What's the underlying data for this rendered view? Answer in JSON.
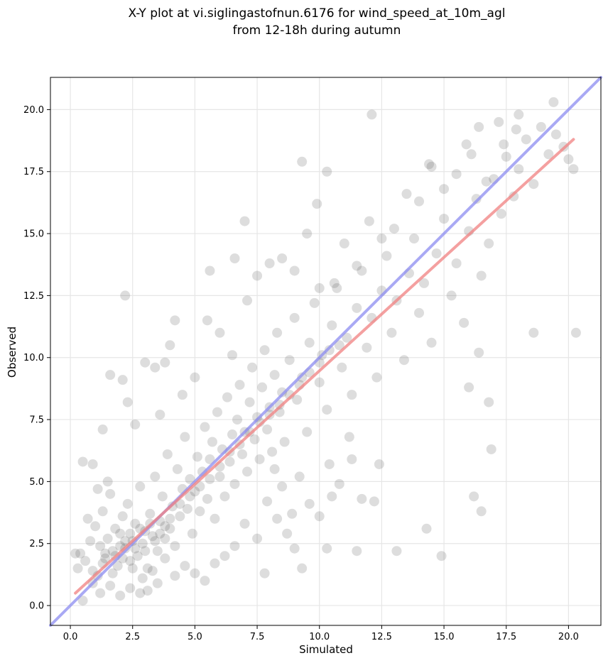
{
  "chart_data": {
    "type": "scatter",
    "title_lines": [
      "X-Y plot at vi.siglingastofnun.6176 for wind_speed_at_10m_agl",
      "from 12-18h during autumn"
    ],
    "xlabel": "Simulated",
    "ylabel": "Observed",
    "xlim": [
      -0.8,
      21.3
    ],
    "ylim": [
      -0.8,
      21.3
    ],
    "x_ticks": [
      0.0,
      2.5,
      5.0,
      7.5,
      10.0,
      12.5,
      15.0,
      17.5,
      20.0
    ],
    "x_tick_labels": [
      "0.0",
      "2.5",
      "5.0",
      "7.5",
      "10.0",
      "12.5",
      "15.0",
      "17.5",
      "20.0"
    ],
    "y_ticks": [
      0.0,
      2.5,
      5.0,
      7.5,
      10.0,
      12.5,
      15.0,
      17.5,
      20.0
    ],
    "y_tick_labels": [
      "0.0",
      "2.5",
      "5.0",
      "7.5",
      "10.0",
      "12.5",
      "15.0",
      "17.5",
      "20.0"
    ],
    "grid": true,
    "points": [
      [
        0.4,
        2.1
      ],
      [
        0.6,
        1.8
      ],
      [
        0.8,
        2.6
      ],
      [
        1.0,
        3.2
      ],
      [
        1.1,
        1.2
      ],
      [
        1.2,
        2.4
      ],
      [
        1.3,
        3.8
      ],
      [
        1.4,
        1.9
      ],
      [
        1.5,
        2.7
      ],
      [
        1.6,
        4.5
      ],
      [
        1.7,
        2.2
      ],
      [
        1.8,
        3.1
      ],
      [
        1.9,
        1.6
      ],
      [
        2.0,
        2.9
      ],
      [
        2.1,
        3.6
      ],
      [
        2.2,
        2.3
      ],
      [
        2.3,
        4.1
      ],
      [
        2.4,
        1.8
      ],
      [
        2.5,
        2.6
      ],
      [
        2.6,
        3.3
      ],
      [
        2.7,
        2.0
      ],
      [
        2.8,
        4.8
      ],
      [
        2.9,
        2.5
      ],
      [
        3.0,
        3.0
      ],
      [
        3.1,
        1.5
      ],
      [
        3.2,
        3.7
      ],
      [
        3.3,
        2.8
      ],
      [
        3.4,
        5.2
      ],
      [
        3.5,
        2.2
      ],
      [
        3.6,
        3.4
      ],
      [
        3.7,
        4.4
      ],
      [
        3.8,
        2.7
      ],
      [
        3.9,
        6.1
      ],
      [
        4.0,
        3.1
      ],
      [
        4.1,
        4.0
      ],
      [
        4.2,
        2.4
      ],
      [
        4.3,
        5.5
      ],
      [
        4.4,
        3.6
      ],
      [
        4.5,
        4.7
      ],
      [
        4.6,
        6.8
      ],
      [
        4.7,
        3.9
      ],
      [
        4.8,
        5.1
      ],
      [
        4.9,
        2.9
      ],
      [
        5.0,
        4.6
      ],
      [
        5.1,
        6.0
      ],
      [
        5.2,
        3.8
      ],
      [
        5.3,
        5.4
      ],
      [
        5.4,
        7.2
      ],
      [
        5.5,
        4.3
      ],
      [
        5.6,
        5.9
      ],
      [
        5.7,
        6.6
      ],
      [
        5.8,
        3.5
      ],
      [
        5.9,
        7.8
      ],
      [
        6.0,
        5.2
      ],
      [
        6.1,
        6.3
      ],
      [
        6.2,
        4.4
      ],
      [
        6.3,
        8.4
      ],
      [
        6.4,
        5.8
      ],
      [
        6.5,
        6.9
      ],
      [
        6.6,
        4.9
      ],
      [
        6.7,
        7.5
      ],
      [
        6.8,
        8.9
      ],
      [
        6.9,
        6.1
      ],
      [
        7.0,
        7.0
      ],
      [
        7.1,
        5.4
      ],
      [
        7.2,
        8.2
      ],
      [
        7.3,
        9.6
      ],
      [
        7.4,
        6.7
      ],
      [
        7.5,
        7.6
      ],
      [
        7.6,
        5.9
      ],
      [
        7.7,
        8.8
      ],
      [
        7.8,
        10.3
      ],
      [
        7.9,
        7.1
      ],
      [
        8.0,
        8.0
      ],
      [
        8.1,
        6.2
      ],
      [
        8.2,
        9.3
      ],
      [
        8.3,
        11.0
      ],
      [
        8.4,
        7.8
      ],
      [
        8.5,
        8.6
      ],
      [
        8.6,
        6.6
      ],
      [
        8.8,
        9.9
      ],
      [
        9.0,
        11.6
      ],
      [
        9.1,
        8.3
      ],
      [
        9.3,
        9.2
      ],
      [
        9.5,
        7.0
      ],
      [
        9.6,
        10.6
      ],
      [
        9.8,
        12.2
      ],
      [
        10.0,
        9.0
      ],
      [
        10.1,
        10.1
      ],
      [
        10.3,
        7.9
      ],
      [
        10.5,
        11.3
      ],
      [
        10.7,
        12.8
      ],
      [
        10.9,
        9.6
      ],
      [
        11.1,
        10.8
      ],
      [
        11.3,
        8.5
      ],
      [
        11.5,
        12.0
      ],
      [
        11.7,
        13.5
      ],
      [
        11.9,
        10.4
      ],
      [
        12.1,
        11.6
      ],
      [
        12.3,
        9.2
      ],
      [
        12.5,
        12.7
      ],
      [
        12.7,
        14.1
      ],
      [
        12.9,
        11.0
      ],
      [
        13.1,
        12.3
      ],
      [
        13.4,
        9.9
      ],
      [
        13.6,
        13.4
      ],
      [
        13.8,
        14.8
      ],
      [
        14.0,
        11.8
      ],
      [
        14.2,
        13.0
      ],
      [
        14.5,
        10.6
      ],
      [
        14.7,
        14.2
      ],
      [
        15.0,
        15.6
      ],
      [
        15.3,
        12.5
      ],
      [
        15.5,
        13.8
      ],
      [
        15.8,
        11.4
      ],
      [
        16.0,
        15.1
      ],
      [
        16.3,
        16.4
      ],
      [
        16.5,
        13.3
      ],
      [
        16.8,
        14.6
      ],
      [
        17.0,
        17.2
      ],
      [
        17.3,
        15.8
      ],
      [
        17.5,
        18.1
      ],
      [
        17.8,
        16.5
      ],
      [
        18.0,
        17.6
      ],
      [
        18.3,
        18.8
      ],
      [
        18.6,
        17.0
      ],
      [
        18.9,
        19.3
      ],
      [
        19.2,
        18.2
      ],
      [
        19.5,
        19.0
      ],
      [
        19.8,
        18.5
      ],
      [
        20.0,
        18.0
      ],
      [
        20.2,
        17.6
      ],
      [
        19.4,
        20.3
      ],
      [
        18.0,
        19.8
      ],
      [
        17.2,
        19.5
      ],
      [
        16.4,
        19.3
      ],
      [
        15.9,
        18.6
      ],
      [
        14.4,
        17.8
      ],
      [
        12.1,
        19.8
      ],
      [
        10.3,
        17.5
      ],
      [
        9.3,
        17.9
      ],
      [
        9.9,
        16.2
      ],
      [
        7.0,
        15.5
      ],
      [
        2.2,
        12.5
      ],
      [
        5.6,
        13.5
      ],
      [
        6.6,
        14.0
      ],
      [
        4.0,
        10.5
      ],
      [
        3.4,
        9.6
      ],
      [
        1.6,
        9.3
      ],
      [
        2.1,
        9.1
      ],
      [
        16.4,
        10.2
      ],
      [
        16.9,
        6.3
      ],
      [
        16.8,
        8.2
      ],
      [
        16.2,
        4.4
      ],
      [
        16.5,
        3.8
      ],
      [
        14.9,
        2.0
      ],
      [
        14.3,
        3.1
      ],
      [
        13.1,
        2.2
      ],
      [
        11.5,
        2.2
      ],
      [
        10.3,
        2.3
      ],
      [
        9.3,
        1.5
      ],
      [
        7.8,
        1.3
      ],
      [
        18.6,
        11.0
      ],
      [
        20.3,
        11.0
      ],
      [
        16.0,
        8.8
      ],
      [
        12.2,
        4.2
      ],
      [
        11.7,
        4.3
      ],
      [
        12.4,
        5.7
      ],
      [
        10.5,
        4.4
      ],
      [
        11.2,
        6.8
      ],
      [
        0.3,
        1.5
      ],
      [
        0.5,
        0.2
      ],
      [
        0.9,
        0.9
      ],
      [
        1.2,
        0.5
      ],
      [
        1.6,
        0.8
      ],
      [
        2.0,
        0.4
      ],
      [
        2.4,
        0.7
      ],
      [
        2.8,
        0.5
      ],
      [
        3.1,
        0.6
      ],
      [
        3.5,
        0.9
      ],
      [
        0.2,
        2.1
      ],
      [
        0.7,
        3.5
      ],
      [
        0.9,
        5.7
      ],
      [
        0.5,
        5.8
      ],
      [
        1.3,
        7.1
      ],
      [
        1.1,
        4.7
      ],
      [
        1.5,
        5.0
      ],
      [
        2.3,
        8.2
      ],
      [
        2.6,
        7.3
      ],
      [
        3.0,
        9.8
      ],
      [
        3.8,
        9.8
      ],
      [
        4.2,
        11.5
      ],
      [
        3.6,
        7.7
      ],
      [
        4.5,
        8.5
      ],
      [
        5.0,
        9.2
      ],
      [
        5.5,
        11.5
      ],
      [
        6.0,
        11.0
      ],
      [
        6.5,
        10.1
      ],
      [
        7.1,
        12.3
      ],
      [
        7.5,
        13.3
      ],
      [
        8.0,
        13.8
      ],
      [
        8.5,
        14.0
      ],
      [
        9.0,
        13.5
      ],
      [
        9.5,
        15.0
      ],
      [
        10.0,
        12.8
      ],
      [
        10.6,
        13.0
      ],
      [
        11.0,
        14.6
      ],
      [
        11.5,
        13.7
      ],
      [
        12.0,
        15.5
      ],
      [
        12.5,
        14.8
      ],
      [
        13.0,
        15.2
      ],
      [
        13.5,
        16.6
      ],
      [
        14.0,
        16.3
      ],
      [
        14.5,
        17.7
      ],
      [
        15.0,
        16.8
      ],
      [
        15.5,
        17.4
      ],
      [
        16.1,
        18.2
      ],
      [
        16.7,
        17.1
      ],
      [
        17.4,
        18.6
      ],
      [
        17.9,
        19.2
      ],
      [
        8.2,
        5.5
      ],
      [
        8.5,
        4.8
      ],
      [
        8.9,
        3.7
      ],
      [
        9.2,
        5.2
      ],
      [
        9.6,
        4.1
      ],
      [
        10.0,
        3.6
      ],
      [
        10.4,
        5.7
      ],
      [
        10.8,
        4.9
      ],
      [
        11.3,
        5.9
      ],
      [
        9.0,
        2.3
      ],
      [
        8.7,
        2.9
      ],
      [
        8.3,
        3.5
      ],
      [
        7.9,
        4.2
      ],
      [
        7.5,
        2.7
      ],
      [
        7.0,
        3.3
      ],
      [
        6.6,
        2.4
      ],
      [
        6.2,
        2.0
      ],
      [
        5.8,
        1.7
      ],
      [
        5.4,
        1.0
      ],
      [
        5.0,
        1.3
      ],
      [
        4.6,
        1.6
      ],
      [
        4.2,
        1.2
      ],
      [
        3.8,
        1.9
      ],
      [
        3.3,
        1.4
      ],
      [
        2.9,
        1.1
      ],
      [
        2.5,
        1.5
      ],
      [
        2.1,
        1.9
      ],
      [
        1.7,
        1.3
      ],
      [
        1.3,
        1.7
      ],
      [
        0.9,
        1.4
      ],
      [
        1.4,
        2.1
      ],
      [
        1.8,
        2.0
      ],
      [
        2.2,
        2.6
      ],
      [
        2.6,
        2.3
      ],
      [
        3.0,
        2.2
      ],
      [
        3.4,
        2.6
      ],
      [
        3.8,
        3.2
      ],
      [
        2.0,
        2.4
      ],
      [
        2.4,
        2.9
      ],
      [
        2.8,
        3.1
      ],
      [
        3.2,
        3.3
      ],
      [
        3.6,
        2.9
      ],
      [
        4.0,
        3.5
      ],
      [
        4.4,
        4.1
      ],
      [
        4.8,
        4.4
      ],
      [
        5.2,
        4.8
      ],
      [
        5.6,
        5.1
      ],
      [
        6.0,
        5.6
      ],
      [
        6.4,
        6.2
      ],
      [
        6.8,
        6.5
      ],
      [
        7.2,
        7.0
      ],
      [
        7.6,
        7.4
      ],
      [
        8.0,
        7.7
      ],
      [
        8.4,
        8.1
      ],
      [
        8.8,
        8.5
      ],
      [
        9.2,
        8.9
      ],
      [
        9.6,
        9.4
      ],
      [
        10.0,
        9.8
      ],
      [
        10.4,
        10.3
      ],
      [
        10.8,
        10.5
      ]
    ],
    "fit_line": {
      "x": [
        0.2,
        20.2
      ],
      "y": [
        0.5,
        18.8
      ],
      "color": "#f08080"
    },
    "identity_line": {
      "x": [
        -0.8,
        21.3
      ],
      "y": [
        -0.8,
        21.3
      ],
      "color": "#8c8cf0"
    },
    "point_color": "#404040"
  }
}
